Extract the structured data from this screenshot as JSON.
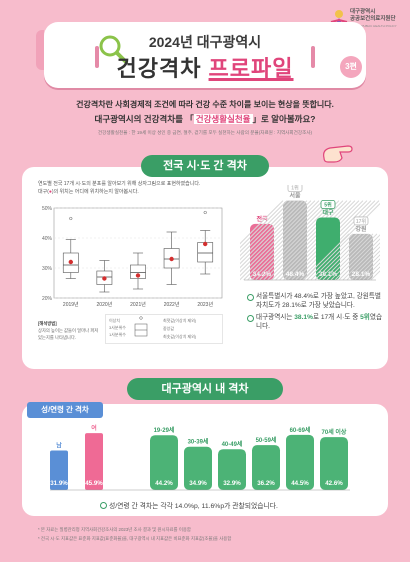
{
  "logo": {
    "line1": "대구광역시",
    "line2": "공공보건의료지원단",
    "line3": "DAEGU PUBLIC HEALTH POLICY INSTITUTE"
  },
  "header": {
    "title_line1": "2024년 대구광역시",
    "title_plain": "건강격차 ",
    "title_highlight": "프로파일",
    "edition": "3편"
  },
  "intro": {
    "line1": "건강격차란 사회경제적 조건에 따라 건강 수준 차이를 보이는 현상을 뜻합니다.",
    "line2_pre": "대구광역시의 건강격차를 「",
    "line2_highlight": "건강생활실천율",
    "line2_post": "」로 알아볼까요?",
    "definition": "건강생활실천율 : 한 19세 이상 성인 중 금연, 절주, 걷기를 모두 실천하는 사람의 분율(자료원 : 지역사회건강조사)"
  },
  "section1": {
    "tag": "전국 시·도 간 격차",
    "desc_line1": "연도별 전국 17개 시·도의 분포를 알아보기 위해 상자그림으로 표현하였습니다.",
    "desc_line2_pre": "대구(",
    "desc_line2_dot": "●",
    "desc_line2_post": ")의 위치는 어디에 위치하는지 알아봅시다.",
    "interp_title": "[해석방법]",
    "interp_text": "상자의 높이는 값들이 얼마나 퍼져있는지를 나타냅니다.",
    "legend_labels": [
      "이상치",
      "3사분위수",
      "중앙값",
      "1사분위수",
      "최댓값(이상치 제외)",
      "최솟값(이상치 제외)"
    ],
    "bullets": [
      {
        "text": "서울특별시가 48.4%로 가장 높았고, 강원특별자치도가 28.1%로 가장 낮았습니다."
      },
      {
        "pre": "대구광역시는 ",
        "hl": "38.1%",
        "mid": "로 17개 시·도 중 ",
        "hl2": "5위",
        "post": "였습니다."
      }
    ]
  },
  "section2": {
    "tag": "대구광역시 내 격차",
    "sex_tag": "성/연령 간 격차",
    "bullet": "성/연령 간 격차는 각각 14.0%p, 11.6%p가 관찰되었습니다."
  },
  "footnotes": [
    "* 본 자료는 질병관리청 지역사회건강조사의 2023년 조사 결과 및 원시자료를 이용함",
    "* 전국 시·도 지표값은 표준화 지표값(표준화율)을, 대구광역시 내 지표값은 비표준화 지표값(조율)을 사용함"
  ],
  "colors": {
    "background": "#f7bccc",
    "accent_pink": "#e0457b",
    "accent_green": "#3a9e66",
    "accent_blue": "#5a8fd6",
    "gray": "#b9b9b9"
  },
  "icons": [
    "magnifier-icon",
    "pointing-hand-icon",
    "logo-mark-icon"
  ],
  "chart_data": [
    {
      "type": "boxplot",
      "ylim": [
        20,
        50
      ],
      "yticks": [
        "20%",
        "30%",
        "40%",
        "50%"
      ],
      "categories": [
        "2019년",
        "2020년",
        "2021년",
        "2022년",
        "2023년"
      ],
      "boxes": [
        {
          "min": 26.5,
          "q1": 28.5,
          "median": 31.0,
          "q3": 35.0,
          "max": 39.5,
          "daegu": 32.0,
          "outliers": [
            46.5
          ]
        },
        {
          "min": 22.0,
          "q1": 24.5,
          "median": 27.0,
          "q3": 29.0,
          "max": 32.5,
          "daegu": 26.5,
          "outliers": []
        },
        {
          "min": 23.0,
          "q1": 26.5,
          "median": 28.5,
          "q3": 31.0,
          "max": 35.0,
          "daegu": 27.5,
          "outliers": []
        },
        {
          "min": 24.5,
          "q1": 30.0,
          "median": 33.0,
          "q3": 36.5,
          "max": 42.0,
          "daegu": 33.0,
          "outliers": []
        },
        {
          "min": 28.0,
          "q1": 32.0,
          "median": 35.0,
          "q3": 38.5,
          "max": 42.5,
          "daegu": 38.0,
          "outliers": [
            48.5
          ]
        }
      ]
    },
    {
      "type": "bar",
      "categories": [
        "전국",
        "서울",
        "대구",
        "강원"
      ],
      "ranks": [
        "",
        "1위",
        "5위",
        "17위"
      ],
      "values": [
        34.2,
        48.4,
        38.1,
        28.1
      ],
      "labels": [
        "34.2%",
        "48.4%",
        "38.1%",
        "28.1%"
      ],
      "colors": [
        "#ea6f98",
        "#b9b9b9",
        "#3fae6e",
        "#b9b9b9"
      ]
    },
    {
      "type": "bar",
      "groups": [
        "sex",
        "age"
      ],
      "categories": [
        "남",
        "여",
        "19-29세",
        "30-39세",
        "40-49세",
        "50-59세",
        "60-69세",
        "70세 이상"
      ],
      "values": [
        31.9,
        45.9,
        44.2,
        34.9,
        32.9,
        36.2,
        44.5,
        42.6
      ],
      "labels": [
        "31.9%",
        "45.9%",
        "44.2%",
        "34.9%",
        "32.9%",
        "36.2%",
        "44.5%",
        "42.6%"
      ]
    }
  ]
}
